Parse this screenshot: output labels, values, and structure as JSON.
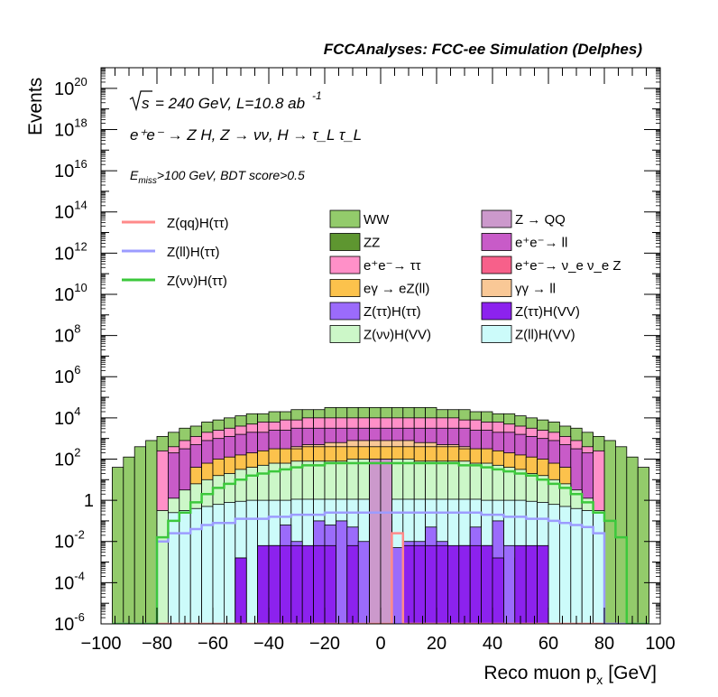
{
  "chart_data": {
    "type": "area",
    "header": "FCCAnalyses: FCC-ee Simulation (Delphes)",
    "xlabel": "Reco muon p",
    "xlabel_sub": "x",
    "xlabel_unit": "[GeV]",
    "ylabel": "Events",
    "xlim": [
      -100,
      100
    ],
    "ylim_log10": [
      -6,
      21
    ],
    "y_scale": "log",
    "annotations": {
      "sqrt": "s",
      "energy": "= 240 GeV, L=10.8 ab",
      "lumi_exp": "-1",
      "process": "e⁺e⁻ → Z H, Z → νν, H → τ_L τ_L",
      "cut_prefix": "E",
      "cut_sub": "miss",
      "cut_rest": ">100 GeV, BDT score>0.5"
    },
    "x_ticks": [
      "−100",
      "−80",
      "−60",
      "−40",
      "−20",
      "0",
      "20",
      "40",
      "60",
      "80",
      "100"
    ],
    "y_ticks": [
      {
        "base": "10",
        "exp": "-6",
        "log": -6
      },
      {
        "base": "10",
        "exp": "-4",
        "log": -4
      },
      {
        "base": "10",
        "exp": "-2",
        "log": -2
      },
      {
        "base": "1",
        "exp": "",
        "log": 0
      },
      {
        "base": "10",
        "exp": "2",
        "log": 2
      },
      {
        "base": "10",
        "exp": "4",
        "log": 4
      },
      {
        "base": "10",
        "exp": "6",
        "log": 6
      },
      {
        "base": "10",
        "exp": "8",
        "log": 8
      },
      {
        "base": "10",
        "exp": "10",
        "log": 10
      },
      {
        "base": "10",
        "exp": "12",
        "log": 12
      },
      {
        "base": "10",
        "exp": "14",
        "log": 14
      },
      {
        "base": "10",
        "exp": "16",
        "log": 16
      },
      {
        "base": "10",
        "exp": "18",
        "log": 18
      },
      {
        "base": "10",
        "exp": "20",
        "log": 20
      }
    ],
    "bin_edges": [
      -96,
      -92,
      -88,
      -84,
      -80,
      -76,
      -72,
      -68,
      -64,
      -60,
      -56,
      -52,
      -48,
      -44,
      -40,
      -36,
      -32,
      -28,
      -24,
      -20,
      -16,
      -12,
      -8,
      -4,
      0,
      4,
      8,
      12,
      16,
      20,
      24,
      28,
      32,
      36,
      40,
      44,
      48,
      52,
      56,
      60,
      64,
      68,
      72,
      76,
      80,
      84,
      88,
      92,
      96
    ],
    "stack_layers_log10": [
      {
        "name": "ZZ",
        "color": "#5e9630",
        "log": [
          0.8,
          1.3,
          1.5,
          1.6,
          1.7,
          1.8,
          1.9,
          2.0,
          2.0,
          2.1,
          2.2,
          2.2,
          2.3,
          2.3,
          2.3,
          2.4,
          2.4,
          2.4,
          2.4,
          2.5,
          2.5,
          2.5,
          2.5,
          2.5,
          2.5,
          2.5,
          2.5,
          2.5,
          2.5,
          2.5,
          2.4,
          2.4,
          2.4,
          2.4,
          2.3,
          2.3,
          2.3,
          2.2,
          2.2,
          2.1,
          2.0,
          2.0,
          1.9,
          1.8,
          1.7,
          1.6,
          1.3,
          0.8
        ]
      },
      {
        "name": "e⁺e⁻ → ν_e ν_e Z",
        "color": "#f7608a",
        "log": [
          -6,
          -6,
          1.2,
          1.4,
          1.6,
          1.8,
          2.0,
          2.2,
          2.4,
          2.5,
          2.6,
          2.7,
          2.8,
          2.9,
          3.0,
          3.1,
          3.2,
          3.2,
          3.3,
          3.3,
          3.3,
          3.4,
          3.4,
          3.4,
          3.4,
          3.4,
          3.4,
          3.3,
          3.3,
          3.3,
          3.2,
          3.2,
          3.1,
          3.0,
          2.9,
          2.8,
          2.7,
          2.6,
          2.5,
          2.4,
          2.2,
          2.0,
          1.8,
          1.6,
          1.4,
          1.2,
          -6,
          -6
        ]
      },
      {
        "name": "WW",
        "color": "#93cb6b",
        "log": [
          1.6,
          2.1,
          2.6,
          2.9,
          3.1,
          3.3,
          3.5,
          3.6,
          3.8,
          3.9,
          4.0,
          4.1,
          4.2,
          4.2,
          4.3,
          4.3,
          4.4,
          4.4,
          4.4,
          4.5,
          4.5,
          4.5,
          4.5,
          4.5,
          4.5,
          4.5,
          4.5,
          4.5,
          4.5,
          4.4,
          4.4,
          4.4,
          4.3,
          4.3,
          4.2,
          4.2,
          4.1,
          4.0,
          3.9,
          3.8,
          3.6,
          3.5,
          3.3,
          3.1,
          2.9,
          2.6,
          2.1,
          1.6
        ]
      }
    ],
    "histos": [
      {
        "name": "e⁺e⁻ → ττ",
        "color": "#ff90c8",
        "log": [
          -6,
          -6,
          -6,
          -6,
          2.4,
          2.6,
          2.9,
          3.1,
          3.3,
          3.4,
          3.5,
          3.6,
          3.7,
          3.8,
          3.8,
          3.9,
          3.9,
          4.0,
          4.0,
          4.0,
          4.0,
          4.0,
          4.0,
          4.0,
          4.0,
          4.0,
          4.0,
          4.0,
          4.0,
          4.0,
          4.0,
          3.9,
          3.9,
          3.8,
          3.8,
          3.7,
          3.6,
          3.5,
          3.4,
          3.3,
          3.1,
          2.9,
          2.6,
          2.4,
          -6,
          -6,
          -6,
          -6
        ]
      },
      {
        "name": "e⁺e⁻ → ll",
        "color": "#c85bc8",
        "log": [
          -6,
          -6,
          -6,
          -6,
          -6,
          2.3,
          2.5,
          2.7,
          2.9,
          3.0,
          3.1,
          3.2,
          3.3,
          3.3,
          3.4,
          3.4,
          3.5,
          3.5,
          3.5,
          3.5,
          3.5,
          3.5,
          3.5,
          3.5,
          3.5,
          3.5,
          3.5,
          3.5,
          3.5,
          3.5,
          3.5,
          3.5,
          3.4,
          3.4,
          3.3,
          3.3,
          3.2,
          3.1,
          3.0,
          2.9,
          2.7,
          2.5,
          2.3,
          -6,
          -6,
          -6,
          -6,
          -6
        ]
      },
      {
        "name": "γγ → ll",
        "color": "#f9c896",
        "log": [
          -6,
          -6,
          -6,
          -6,
          -6,
          -6,
          -6,
          -6,
          -6,
          -6,
          -6,
          -6,
          -6,
          -6,
          -6,
          2.4,
          2.6,
          2.7,
          2.7,
          2.8,
          2.8,
          2.9,
          2.9,
          2.9,
          2.9,
          2.9,
          2.9,
          2.8,
          2.8,
          2.7,
          2.7,
          2.6,
          2.4,
          -6,
          -6,
          -6,
          -6,
          -6,
          -6,
          -6,
          -6,
          -6,
          -6,
          -6,
          -6,
          -6,
          -6,
          -6
        ]
      },
      {
        "name": "eγ → eZ(ll)",
        "color": "#fcc24c",
        "log": [
          -6,
          -6,
          -6,
          -6,
          -6,
          -6,
          -6,
          1.6,
          1.8,
          2.0,
          2.1,
          2.2,
          2.3,
          2.4,
          2.5,
          2.5,
          2.5,
          2.6,
          2.6,
          2.6,
          2.6,
          2.6,
          2.6,
          2.6,
          2.6,
          2.6,
          2.6,
          2.6,
          2.6,
          2.6,
          2.6,
          2.5,
          2.5,
          2.5,
          2.4,
          2.3,
          2.2,
          2.1,
          2.0,
          1.8,
          1.6,
          -6,
          -6,
          -6,
          -6,
          -6,
          -6,
          -6
        ]
      },
      {
        "name": "Z(νν)H(VV)",
        "color": "#ccf7c8",
        "log": [
          -6,
          -6,
          -6,
          -6,
          -0.5,
          0.1,
          0.5,
          0.8,
          1.0,
          1.2,
          1.3,
          1.5,
          1.6,
          1.7,
          1.8,
          1.8,
          1.9,
          1.9,
          1.9,
          1.9,
          1.9,
          2.0,
          2.0,
          2.0,
          2.0,
          2.0,
          2.0,
          1.9,
          1.9,
          1.9,
          1.9,
          1.9,
          1.8,
          1.8,
          1.7,
          1.6,
          1.5,
          1.3,
          1.2,
          1.0,
          0.8,
          0.5,
          0.1,
          -0.5,
          -6,
          -6,
          -6,
          -6
        ]
      },
      {
        "name": "Z(ll)H(VV)",
        "color": "#ccfbfa",
        "log": [
          -6,
          -6,
          -6,
          -6,
          -6,
          -0.6,
          -0.5,
          -0.4,
          -0.3,
          -0.2,
          -0.1,
          -0.05,
          0,
          0,
          0,
          0,
          0.05,
          0.05,
          0.05,
          0.05,
          0.05,
          0.05,
          0.05,
          0.05,
          0.05,
          0.05,
          0.05,
          0.05,
          0.05,
          0.05,
          0.05,
          0.05,
          0.05,
          0,
          0,
          0,
          0,
          -0.05,
          -0.1,
          -0.2,
          -0.3,
          -0.4,
          -0.5,
          -0.6,
          -6,
          -6,
          -6,
          -6
        ]
      },
      {
        "name": "Z(ττ)H(ττ)",
        "color": "#9b6bfb",
        "log": [
          -6,
          -6,
          -6,
          -6,
          -6,
          -6,
          -6,
          -6,
          -6,
          -6,
          -6,
          -2.8,
          -6,
          -6,
          -2.2,
          -1.2,
          -2.0,
          -2.8,
          -1.0,
          -1.2,
          -1.0,
          -1.3,
          -2.0,
          -1.3,
          -1.0,
          -2.3,
          -2.0,
          -2.0,
          -1.3,
          -2.0,
          -2.8,
          -2.2,
          -1.3,
          -2.2,
          -1.0,
          -2.2,
          -2.8,
          -6,
          -6,
          -6,
          -6,
          -6,
          -6,
          -6,
          -6,
          -6,
          -6,
          -6
        ]
      },
      {
        "name": "Z(ττ)H(VV)",
        "color": "#8c22ee",
        "log": [
          -6,
          -6,
          -6,
          -6,
          -6,
          -6,
          -6,
          -6,
          -6,
          -6,
          -6,
          -2.8,
          -6,
          -2.2,
          -2.2,
          -2.2,
          -2.2,
          -2.2,
          -2.2,
          -2.2,
          -6,
          -2.2,
          -6,
          -2.2,
          -2.2,
          -6,
          -2.2,
          -2.2,
          -2.2,
          -2.2,
          -2.2,
          -2.2,
          -2.2,
          -2.2,
          -2.8,
          -6,
          -2.2,
          -2.2,
          -2.2,
          -6,
          -6,
          -6,
          -6,
          -6,
          -6,
          -6,
          -6,
          -6
        ]
      },
      {
        "name": "Z → QQ",
        "color": "#cc99cc",
        "log": [
          -6,
          -6,
          -6,
          -6,
          -6,
          -6,
          -6,
          -6,
          -6,
          -6,
          -6,
          -6,
          -6,
          -6,
          -6,
          -6,
          -6,
          -6,
          -6,
          -6,
          -6,
          -6,
          -6,
          2.0,
          2.0,
          -6,
          -6,
          -6,
          -6,
          -6,
          -6,
          -6,
          -6,
          -6,
          -6,
          -6,
          -6,
          -6,
          -6,
          -6,
          -6,
          -6,
          -6,
          -6,
          -6,
          -6,
          -6,
          -6
        ]
      }
    ],
    "lines": [
      {
        "name": "Z(qq)H(ττ)",
        "color": "#ff8a8a",
        "log": [
          -6,
          -6,
          -6,
          -6,
          -6,
          -6,
          -6,
          -6,
          -6,
          -6,
          -6,
          -6,
          -6,
          -6,
          -6,
          -6,
          -6,
          -6,
          -6,
          -6,
          -6,
          -6,
          -6,
          -6,
          -6,
          -1.6,
          -6,
          -6,
          -6,
          -6,
          -6,
          -6,
          -6,
          -6,
          -6,
          -6,
          -6,
          -6,
          -6,
          -6,
          -6,
          -6,
          -6,
          -6,
          -6,
          -6,
          -6,
          -6
        ]
      },
      {
        "name": "Z(ll)H(ττ)",
        "color": "#9c9cff",
        "log": [
          -6,
          -6,
          -6,
          -6,
          -2.0,
          -1.6,
          -1.6,
          -1.4,
          -1.2,
          -1.1,
          -1.1,
          -0.9,
          -0.9,
          -0.9,
          -0.8,
          -0.8,
          -0.7,
          -0.7,
          -0.7,
          -0.6,
          -0.6,
          -0.6,
          -0.6,
          -0.6,
          -0.6,
          -0.6,
          -0.6,
          -0.6,
          -0.6,
          -0.6,
          -0.6,
          -0.6,
          -0.6,
          -0.7,
          -0.7,
          -0.8,
          -0.8,
          -0.9,
          -0.9,
          -1.0,
          -1.1,
          -1.2,
          -1.3,
          -1.6,
          -6,
          -6,
          -6,
          -6
        ]
      },
      {
        "name": "Z(νν)H(ττ)",
        "color": "#3cc83c",
        "log": [
          -6,
          -6,
          -6,
          -6,
          -1.8,
          -1.0,
          -0.6,
          -0.1,
          0.3,
          0.6,
          0.8,
          1.0,
          1.2,
          1.3,
          1.4,
          1.5,
          1.6,
          1.7,
          1.7,
          1.8,
          1.8,
          1.8,
          1.8,
          1.8,
          1.8,
          1.8,
          1.8,
          1.8,
          1.8,
          1.8,
          1.8,
          1.7,
          1.7,
          1.6,
          1.5,
          1.4,
          1.3,
          1.2,
          1.0,
          0.8,
          0.6,
          0.3,
          -0.1,
          -0.6,
          -1.0,
          -1.8,
          -6,
          -6
        ]
      }
    ],
    "legend_lines": [
      {
        "label": "Z(qq)H(ττ)",
        "color": "#ff8a8a"
      },
      {
        "label": "Z(ll)H(ττ)",
        "color": "#9c9cff"
      },
      {
        "label": "Z(νν)H(ττ)",
        "color": "#3cc83c"
      }
    ],
    "legend_boxes_col1": [
      {
        "label": "WW",
        "color": "#93cb6b"
      },
      {
        "label": "ZZ",
        "color": "#5e9630"
      },
      {
        "label": "e⁺e⁻→ ττ",
        "color": "#ff90c8"
      },
      {
        "label": "eγ → eZ(ll)",
        "color": "#fcc24c"
      },
      {
        "label": "Z(ττ)H(ττ)",
        "color": "#9b6bfb"
      },
      {
        "label": "Z(νν)H(VV)",
        "color": "#ccf7c8"
      }
    ],
    "legend_boxes_col2": [
      {
        "label": "Z → QQ",
        "color": "#cc99cc"
      },
      {
        "label": "e⁺e⁻→ ll",
        "color": "#c85bc8"
      },
      {
        "label": "e⁺e⁻→ ν_e ν_e Z",
        "color": "#f7608a"
      },
      {
        "label": "γγ → ll",
        "color": "#f9c896"
      },
      {
        "label": "Z(ττ)H(VV)",
        "color": "#8c22ee"
      },
      {
        "label": "Z(ll)H(VV)",
        "color": "#ccfbfa"
      }
    ]
  }
}
